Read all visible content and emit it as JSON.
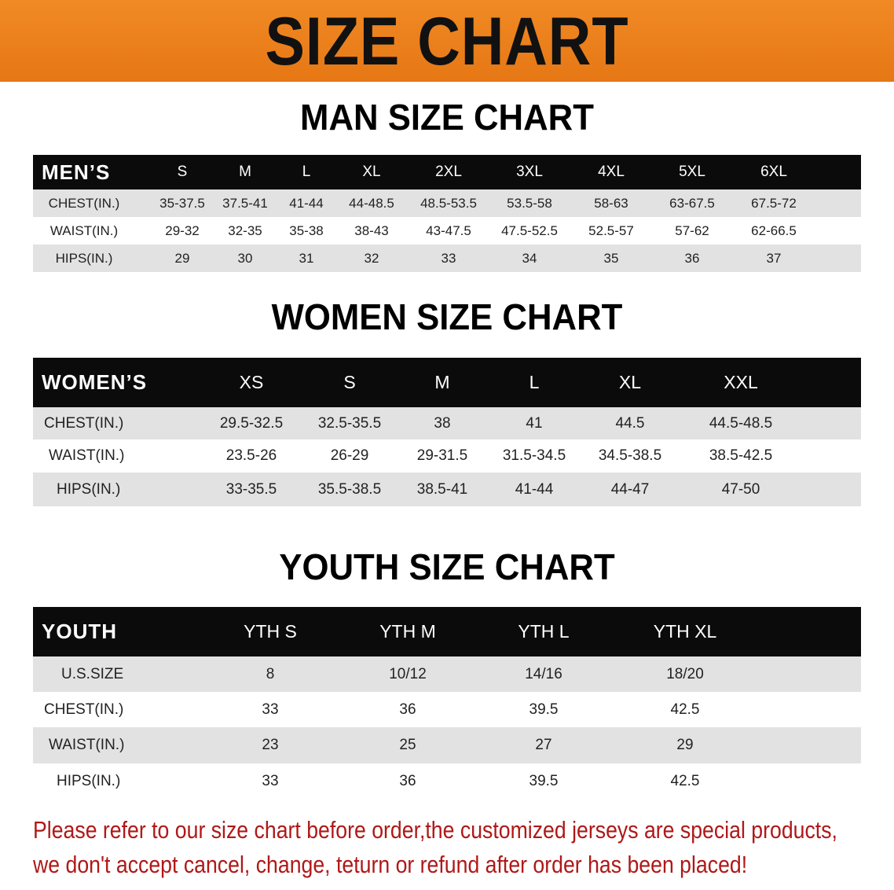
{
  "banner_title": "SIZE CHART",
  "colors": {
    "banner": "#ef8420",
    "header_row": "#0b0b0b",
    "stripe": "#e2e2e2",
    "note": "#b01818"
  },
  "men": {
    "title": "MAN SIZE CHART",
    "header_label": "MEN’S",
    "sizes": [
      "S",
      "M",
      "L",
      "XL",
      "2XL",
      "3XL",
      "4XL",
      "5XL",
      "6XL"
    ],
    "rows": [
      {
        "label": "CHEST(IN.)",
        "values": [
          "35-37.5",
          "37.5-41",
          "41-44",
          "44-48.5",
          "48.5-53.5",
          "53.5-58",
          "58-63",
          "63-67.5",
          "67.5-72"
        ]
      },
      {
        "label": "WAIST(IN.)",
        "values": [
          "29-32",
          "32-35",
          "35-38",
          "38-43",
          "43-47.5",
          "47.5-52.5",
          "52.5-57",
          "57-62",
          "62-66.5"
        ]
      },
      {
        "label": "HIPS(IN.)",
        "values": [
          "29",
          "30",
          "31",
          "32",
          "33",
          "34",
          "35",
          "36",
          "37"
        ]
      }
    ]
  },
  "women": {
    "title": "WOMEN SIZE CHART",
    "header_label": "WOMEN’S",
    "sizes": [
      "XS",
      "S",
      "M",
      "L",
      "XL",
      "XXL"
    ],
    "rows": [
      {
        "label": "CHEST(IN.)",
        "values": [
          "29.5-32.5",
          "32.5-35.5",
          "38",
          "41",
          "44.5",
          "44.5-48.5"
        ]
      },
      {
        "label": "WAIST(IN.)",
        "values": [
          "23.5-26",
          "26-29",
          "29-31.5",
          "31.5-34.5",
          "34.5-38.5",
          "38.5-42.5"
        ]
      },
      {
        "label": "HIPS(IN.)",
        "values": [
          "33-35.5",
          "35.5-38.5",
          "38.5-41",
          "41-44",
          "44-47",
          "47-50"
        ]
      }
    ]
  },
  "youth": {
    "title": "YOUTH SIZE CHART",
    "header_label": "YOUTH",
    "sizes": [
      "YTH S",
      "YTH M",
      "YTH L",
      "YTH XL"
    ],
    "rows": [
      {
        "label": "U.S.SIZE",
        "values": [
          "8",
          "10/12",
          "14/16",
          "18/20"
        ]
      },
      {
        "label": "CHEST(IN.)",
        "values": [
          "33",
          "36",
          "39.5",
          "42.5"
        ]
      },
      {
        "label": "WAIST(IN.)",
        "values": [
          "23",
          "25",
          "27",
          "29"
        ]
      },
      {
        "label": "HIPS(IN.)",
        "values": [
          "33",
          "36",
          "39.5",
          "42.5"
        ]
      }
    ]
  },
  "note": {
    "line1": "Please refer to our size chart before order,the customized jerseys are special products,",
    "line2": "we don't accept cancel, change, teturn or refund after order has been placed!"
  }
}
